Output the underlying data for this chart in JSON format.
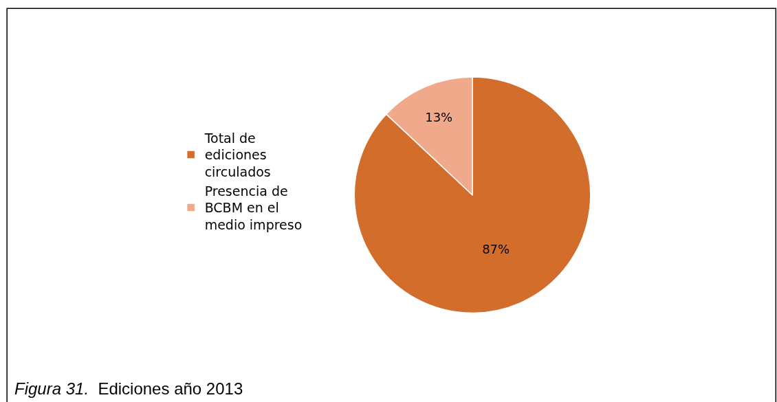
{
  "chart_data": {
    "type": "pie",
    "categories": [
      "Total de ediciones circulados",
      "Presencia de BCBM en el medio impreso"
    ],
    "values": [
      87,
      13
    ],
    "colors": [
      "#d26d2b",
      "#f0a98b"
    ],
    "value_labels": [
      "87%",
      "13%"
    ],
    "legend": "left",
    "annotations": [
      "$^{}$Figura 31.  Ediciones año 2013"
    ]
  }
}
